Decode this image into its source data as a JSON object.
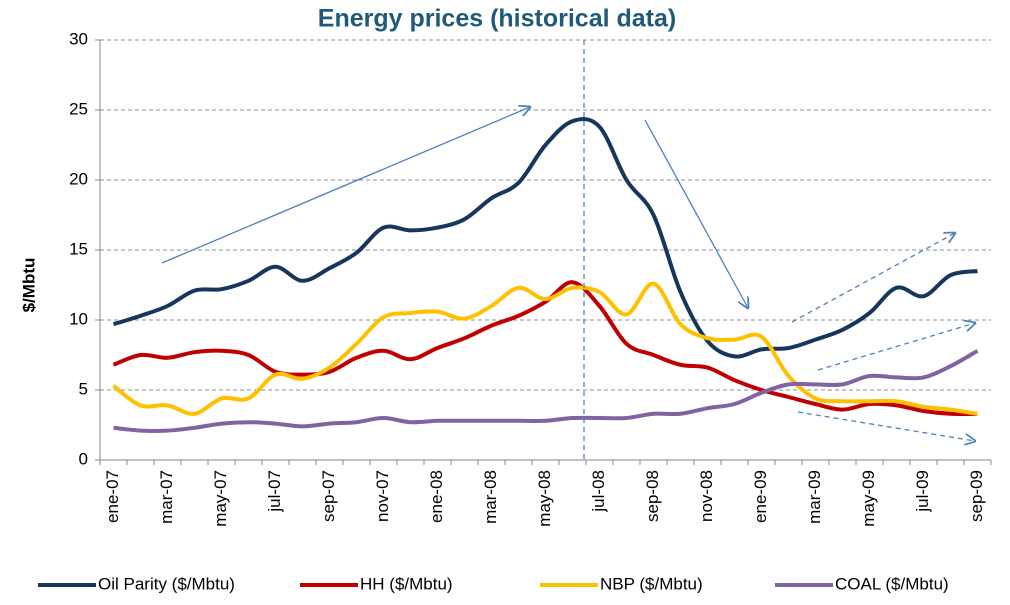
{
  "chart_data": {
    "type": "line",
    "title": "Energy prices (historical data)",
    "y_label": "$/Mbtu",
    "categories": [
      "ene-07",
      null,
      "mar-07",
      null,
      "may-07",
      null,
      "jul-07",
      null,
      "sep-07",
      null,
      "nov-07",
      null,
      "ene-08",
      null,
      "mar-08",
      null,
      "may-08",
      null,
      "jul-08",
      null,
      "sep-08",
      null,
      "nov-08",
      null,
      "ene-09",
      null,
      "mar-09",
      null,
      "may-09",
      null,
      "jul-09",
      null,
      "sep-09"
    ],
    "series": [
      {
        "name": "Oil Parity ($/Mbtu)",
        "color": "#17365d",
        "values": [
          9.7,
          10.3,
          11.0,
          12.1,
          12.2,
          12.8,
          13.8,
          12.8,
          13.7,
          14.8,
          16.6,
          16.4,
          16.6,
          17.2,
          18.7,
          19.8,
          22.5,
          24.2,
          23.8,
          20.0,
          17.5,
          12.0,
          8.5,
          7.4,
          7.9,
          8.0,
          8.6,
          9.3,
          10.5,
          12.3,
          11.7,
          13.2,
          13.5
        ]
      },
      {
        "name": "HH ($/Mbtu)",
        "color": "#c00000",
        "values": [
          6.8,
          7.5,
          7.3,
          7.7,
          7.8,
          7.5,
          6.3,
          6.1,
          6.3,
          7.3,
          7.8,
          7.2,
          8.0,
          8.7,
          9.6,
          10.3,
          11.3,
          12.7,
          11.0,
          8.3,
          7.5,
          6.8,
          6.6,
          5.7,
          5.0,
          4.5,
          4.0,
          3.6,
          4.0,
          3.9,
          3.5,
          3.3,
          3.3
        ]
      },
      {
        "name": "NBP ($/Mbtu)",
        "color": "#ffc000",
        "values": [
          5.3,
          3.9,
          3.9,
          3.3,
          4.4,
          4.4,
          6.1,
          5.8,
          6.6,
          8.3,
          10.2,
          10.5,
          10.6,
          10.1,
          11.0,
          12.3,
          11.5,
          12.3,
          12.0,
          10.4,
          12.6,
          9.7,
          8.7,
          8.6,
          8.8,
          6.0,
          4.4,
          4.2,
          4.2,
          4.2,
          3.8,
          3.6,
          3.3
        ]
      },
      {
        "name": "COAL ($/Mbtu)",
        "color": "#8064a2",
        "values": [
          2.3,
          2.1,
          2.1,
          2.3,
          2.6,
          2.7,
          2.6,
          2.4,
          2.6,
          2.7,
          3.0,
          2.7,
          2.8,
          2.8,
          2.8,
          2.8,
          2.8,
          3.0,
          3.0,
          3.0,
          3.3,
          3.3,
          3.7,
          4.0,
          4.8,
          5.4,
          5.4,
          5.4,
          6.0,
          5.9,
          5.9,
          6.7,
          7.8
        ]
      }
    ],
    "ylim": [
      0,
      30
    ],
    "yticks": [
      0,
      5,
      10,
      15,
      20,
      25,
      30
    ],
    "grid": true,
    "legend": "bottom"
  }
}
